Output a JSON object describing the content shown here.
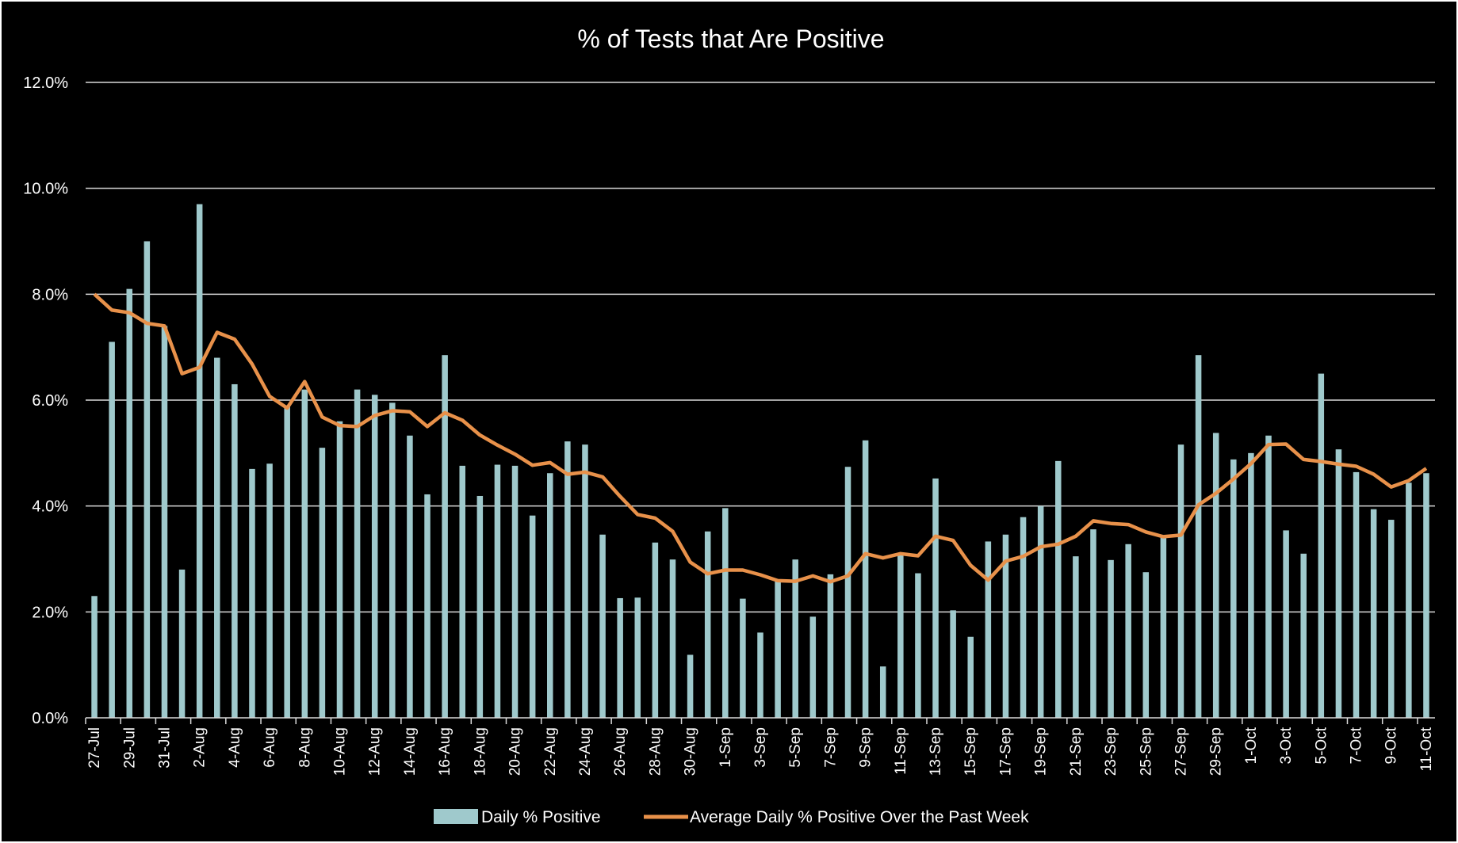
{
  "chart_data": {
    "type": "bar",
    "title": "% of Tests that Are Positive",
    "xlabel": "",
    "ylabel": "",
    "ylim": [
      0,
      12
    ],
    "yticks": [
      "0.0%",
      "2.0%",
      "4.0%",
      "6.0%",
      "8.0%",
      "10.0%",
      "12.0%"
    ],
    "grid": true,
    "legend_position": "bottom",
    "colors": {
      "bar": "#9fc9cc",
      "line": "#e8914a",
      "background": "#000000",
      "text": "#ffffff"
    },
    "categories": [
      "27-Jul",
      "28-Jul",
      "29-Jul",
      "30-Jul",
      "31-Jul",
      "1-Aug",
      "2-Aug",
      "3-Aug",
      "4-Aug",
      "5-Aug",
      "6-Aug",
      "7-Aug",
      "8-Aug",
      "9-Aug",
      "10-Aug",
      "11-Aug",
      "12-Aug",
      "13-Aug",
      "14-Aug",
      "15-Aug",
      "16-Aug",
      "17-Aug",
      "18-Aug",
      "19-Aug",
      "20-Aug",
      "21-Aug",
      "22-Aug",
      "23-Aug",
      "24-Aug",
      "25-Aug",
      "26-Aug",
      "27-Aug",
      "28-Aug",
      "29-Aug",
      "30-Aug",
      "31-Aug",
      "1-Sep",
      "2-Sep",
      "3-Sep",
      "4-Sep",
      "5-Sep",
      "6-Sep",
      "7-Sep",
      "8-Sep",
      "9-Sep",
      "10-Sep",
      "11-Sep",
      "12-Sep",
      "13-Sep",
      "14-Sep",
      "15-Sep",
      "16-Sep",
      "17-Sep",
      "18-Sep",
      "19-Sep",
      "20-Sep",
      "21-Sep",
      "22-Sep",
      "23-Sep",
      "24-Sep",
      "25-Sep",
      "26-Sep",
      "27-Sep",
      "28-Sep",
      "29-Sep",
      "30-Sep",
      "1-Oct",
      "2-Oct",
      "3-Oct",
      "4-Oct",
      "5-Oct",
      "6-Oct",
      "7-Oct",
      "8-Oct",
      "9-Oct",
      "10-Oct",
      "11-Oct"
    ],
    "xtick_labels": [
      "27-Jul",
      "29-Jul",
      "31-Jul",
      "2-Aug",
      "4-Aug",
      "6-Aug",
      "8-Aug",
      "10-Aug",
      "12-Aug",
      "14-Aug",
      "16-Aug",
      "18-Aug",
      "20-Aug",
      "22-Aug",
      "24-Aug",
      "26-Aug",
      "28-Aug",
      "30-Aug",
      "1-Sep",
      "3-Sep",
      "5-Sep",
      "7-Sep",
      "9-Sep",
      "11-Sep",
      "13-Sep",
      "15-Sep",
      "17-Sep",
      "19-Sep",
      "21-Sep",
      "23-Sep",
      "25-Sep",
      "27-Sep",
      "29-Sep",
      "1-Oct",
      "3-Oct",
      "5-Oct",
      "7-Oct",
      "9-Oct",
      "11-Oct"
    ],
    "series": [
      {
        "name": "Daily % Positive",
        "type": "bar",
        "values": [
          2.3,
          7.1,
          8.1,
          9.0,
          7.4,
          2.8,
          9.7,
          6.8,
          6.3,
          4.7,
          4.8,
          5.9,
          6.2,
          5.1,
          5.6,
          6.2,
          6.1,
          5.95,
          5.33,
          4.22,
          6.85,
          4.76,
          4.19,
          4.78,
          4.76,
          3.82,
          4.62,
          5.22,
          5.16,
          3.46,
          2.26,
          2.27,
          3.31,
          2.99,
          1.19,
          3.52,
          3.96,
          2.25,
          1.61,
          2.6,
          2.99,
          1.91,
          2.71,
          4.74,
          5.24,
          0.97,
          3.1,
          2.73,
          4.52,
          2.03,
          1.53,
          3.33,
          3.46,
          3.79,
          4.0,
          4.85,
          3.05,
          3.56,
          2.98,
          3.28,
          2.75,
          3.43,
          5.16,
          6.85,
          5.38,
          4.88,
          5.0,
          5.33,
          3.54,
          3.1,
          6.5,
          5.07,
          4.64,
          3.94,
          3.74,
          4.44,
          4.62
        ]
      },
      {
        "name": "Average Daily % Positive Over the Past Week",
        "type": "line",
        "values": [
          8.0,
          7.7,
          7.65,
          7.45,
          7.4,
          6.5,
          6.62,
          7.28,
          7.15,
          6.68,
          6.07,
          5.85,
          6.35,
          5.68,
          5.52,
          5.5,
          5.71,
          5.8,
          5.78,
          5.5,
          5.76,
          5.62,
          5.34,
          5.15,
          4.98,
          4.77,
          4.82,
          4.6,
          4.64,
          4.55,
          4.18,
          3.84,
          3.77,
          3.52,
          2.94,
          2.72,
          2.79,
          2.79,
          2.7,
          2.59,
          2.58,
          2.68,
          2.57,
          2.68,
          3.1,
          3.02,
          3.1,
          3.06,
          3.43,
          3.35,
          2.88,
          2.6,
          2.96,
          3.05,
          3.23,
          3.28,
          3.43,
          3.72,
          3.67,
          3.65,
          3.51,
          3.42,
          3.45,
          4.02,
          4.24,
          4.51,
          4.8,
          5.16,
          5.17,
          4.88,
          4.84,
          4.79,
          4.75,
          4.6,
          4.36,
          4.48,
          4.71
        ]
      }
    ]
  }
}
